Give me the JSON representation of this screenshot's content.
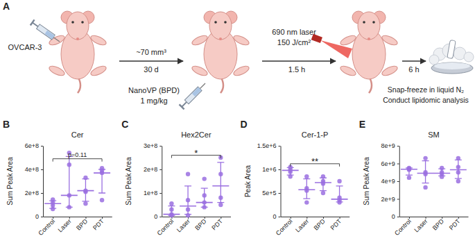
{
  "diagram": {
    "panel": "A",
    "cells": "OVCAR-3",
    "tumor_volume": "~70 mm³",
    "growth_time": "30 d",
    "drug": "NanoVP (BPD)",
    "dose": "1 mg/kg",
    "laser": "690 nm laser",
    "fluence": "150 J/cm²",
    "drug_light_interval": "1.5 h",
    "harvest_time": "6 h",
    "processing": [
      "Snap-freeze in liquid N₂",
      "Conduct lipidomic analysis"
    ]
  },
  "chart_data": [
    {
      "type": "scatter",
      "panel": "B",
      "title": "Cer",
      "y_label": "Sum Peak Area",
      "categories": [
        "Control",
        "Laser",
        "BPD",
        "PDT"
      ],
      "color": "#9a6fe0",
      "values": [
        [
          145000000.0,
          120000000.0,
          95000000.0,
          65000000.0
        ],
        [
          540000000.0,
          440000000.0,
          180000000.0,
          80000000.0
        ],
        [
          330000000.0,
          220000000.0,
          210000000.0,
          110000000.0
        ],
        [
          410000000.0,
          390000000.0,
          370000000.0,
          140000000.0
        ]
      ],
      "median": [
        110000000.0,
        180000000.0,
        220000000.0,
        370000000.0
      ],
      "q1": [
        70000000.0,
        80000000.0,
        130000000.0,
        200000000.0
      ],
      "q3": [
        135000000.0,
        510000000.0,
        320000000.0,
        400000000.0
      ],
      "ylim": [
        0,
        600000000.0
      ],
      "yticks": [
        0,
        {
          "value": 200000000.0,
          "label": "2e+8"
        },
        {
          "value": 400000000.0,
          "label": "4e+8"
        },
        {
          "value": 600000000.0,
          "label": "6e+8"
        }
      ],
      "annotations": [
        {
          "text": "p=0.11",
          "from": "Control",
          "to": "PDT",
          "y": 490000000.0
        }
      ]
    },
    {
      "type": "scatter",
      "panel": "C",
      "title": "Hex2Cer",
      "y_label": "Sum Peak Area",
      "categories": [
        "Control",
        "Laser",
        "BPD",
        "PDT"
      ],
      "color": "#9a6fe0",
      "values": [
        [
          55000000.0,
          30000000.0,
          10000000.0,
          5000000.0
        ],
        [
          180000000.0,
          70000000.0,
          30000000.0,
          5000000.0
        ],
        [
          160000000.0,
          90000000.0,
          60000000.0,
          40000000.0
        ],
        [
          250000000.0,
          180000000.0,
          80000000.0,
          50000000.0
        ]
      ],
      "median": [
        10000000.0,
        45000000.0,
        60000000.0,
        130000000.0
      ],
      "q1": [
        5000000.0,
        10000000.0,
        40000000.0,
        60000000.0
      ],
      "q3": [
        45000000.0,
        130000000.0,
        120000000.0,
        230000000.0
      ],
      "ylim": [
        0,
        300000000.0
      ],
      "yticks": [
        0,
        {
          "value": 100000000.0,
          "label": "1e+8"
        },
        {
          "value": 200000000.0,
          "label": "2e+8"
        },
        {
          "value": 300000000.0,
          "label": "3e+8"
        }
      ],
      "annotations": [
        {
          "text": "*",
          "from": "Control",
          "to": "PDT",
          "y": 260000000.0
        }
      ]
    },
    {
      "type": "scatter",
      "panel": "D",
      "title": "Cer-1-P",
      "y_label": "Peak Area",
      "categories": [
        "Control",
        "Laser",
        "BPD",
        "PDT"
      ],
      "color": "#9a6fe0",
      "values": [
        [
          1050000.0,
          1000000.0,
          950000.0,
          850000.0
        ],
        [
          850000.0,
          600000.0,
          550000.0,
          300000.0
        ],
        [
          850000.0,
          750000.0,
          700000.0,
          500000.0
        ],
        [
          750000.0,
          400000.0,
          350000.0,
          300000.0
        ]
      ],
      "median": [
        980000.0,
        570000.0,
        720000.0,
        370000.0
      ],
      "q1": [
        880000.0,
        380000.0,
        550000.0,
        310000.0
      ],
      "q3": [
        1040000.0,
        800000.0,
        820000.0,
        650000.0
      ],
      "ylim": [
        0,
        1500000.0
      ],
      "yticks": [
        0,
        {
          "value": 500000.0,
          "label": "5e+5"
        },
        {
          "value": 1000000.0,
          "label": "1e+6"
        },
        {
          "value": 1500000.0,
          "label": "1.5e+6"
        }
      ],
      "annotations": [
        {
          "text": "**",
          "from": "Control",
          "to": "PDT",
          "y": 1120000.0
        }
      ]
    },
    {
      "type": "scatter",
      "panel": "E",
      "title": "SM",
      "y_label": "Sum Peak Area",
      "categories": [
        "Control",
        "Laser",
        "BPD",
        "PDT"
      ],
      "color": "#9a6fe0",
      "values": [
        [
          5500000000.0,
          5400000000.0,
          5300000000.0,
          4400000000.0
        ],
        [
          6600000000.0,
          5000000000.0,
          4800000000.0,
          3300000000.0
        ],
        [
          5500000000.0,
          5000000000.0,
          4800000000.0,
          4500000000.0
        ],
        [
          6600000000.0,
          5600000000.0,
          5000000000.0,
          4000000000.0
        ]
      ],
      "median": [
        5350000000.0,
        4900000000.0,
        4900000000.0,
        5300000000.0
      ],
      "q1": [
        4700000000.0,
        3800000000.0,
        4600000000.0,
        4300000000.0
      ],
      "q3": [
        5500000000.0,
        6300000000.0,
        5400000000.0,
        6400000000.0
      ],
      "ylim": [
        0,
        8000000000.0
      ],
      "yticks": [
        0,
        {
          "value": 2000000000.0,
          "label": "2e+9"
        },
        {
          "value": 4000000000.0,
          "label": "4e+9"
        },
        {
          "value": 6000000000.0,
          "label": "6e+9"
        },
        {
          "value": 8000000000.0,
          "label": "8e+9"
        }
      ],
      "annotations": []
    }
  ]
}
